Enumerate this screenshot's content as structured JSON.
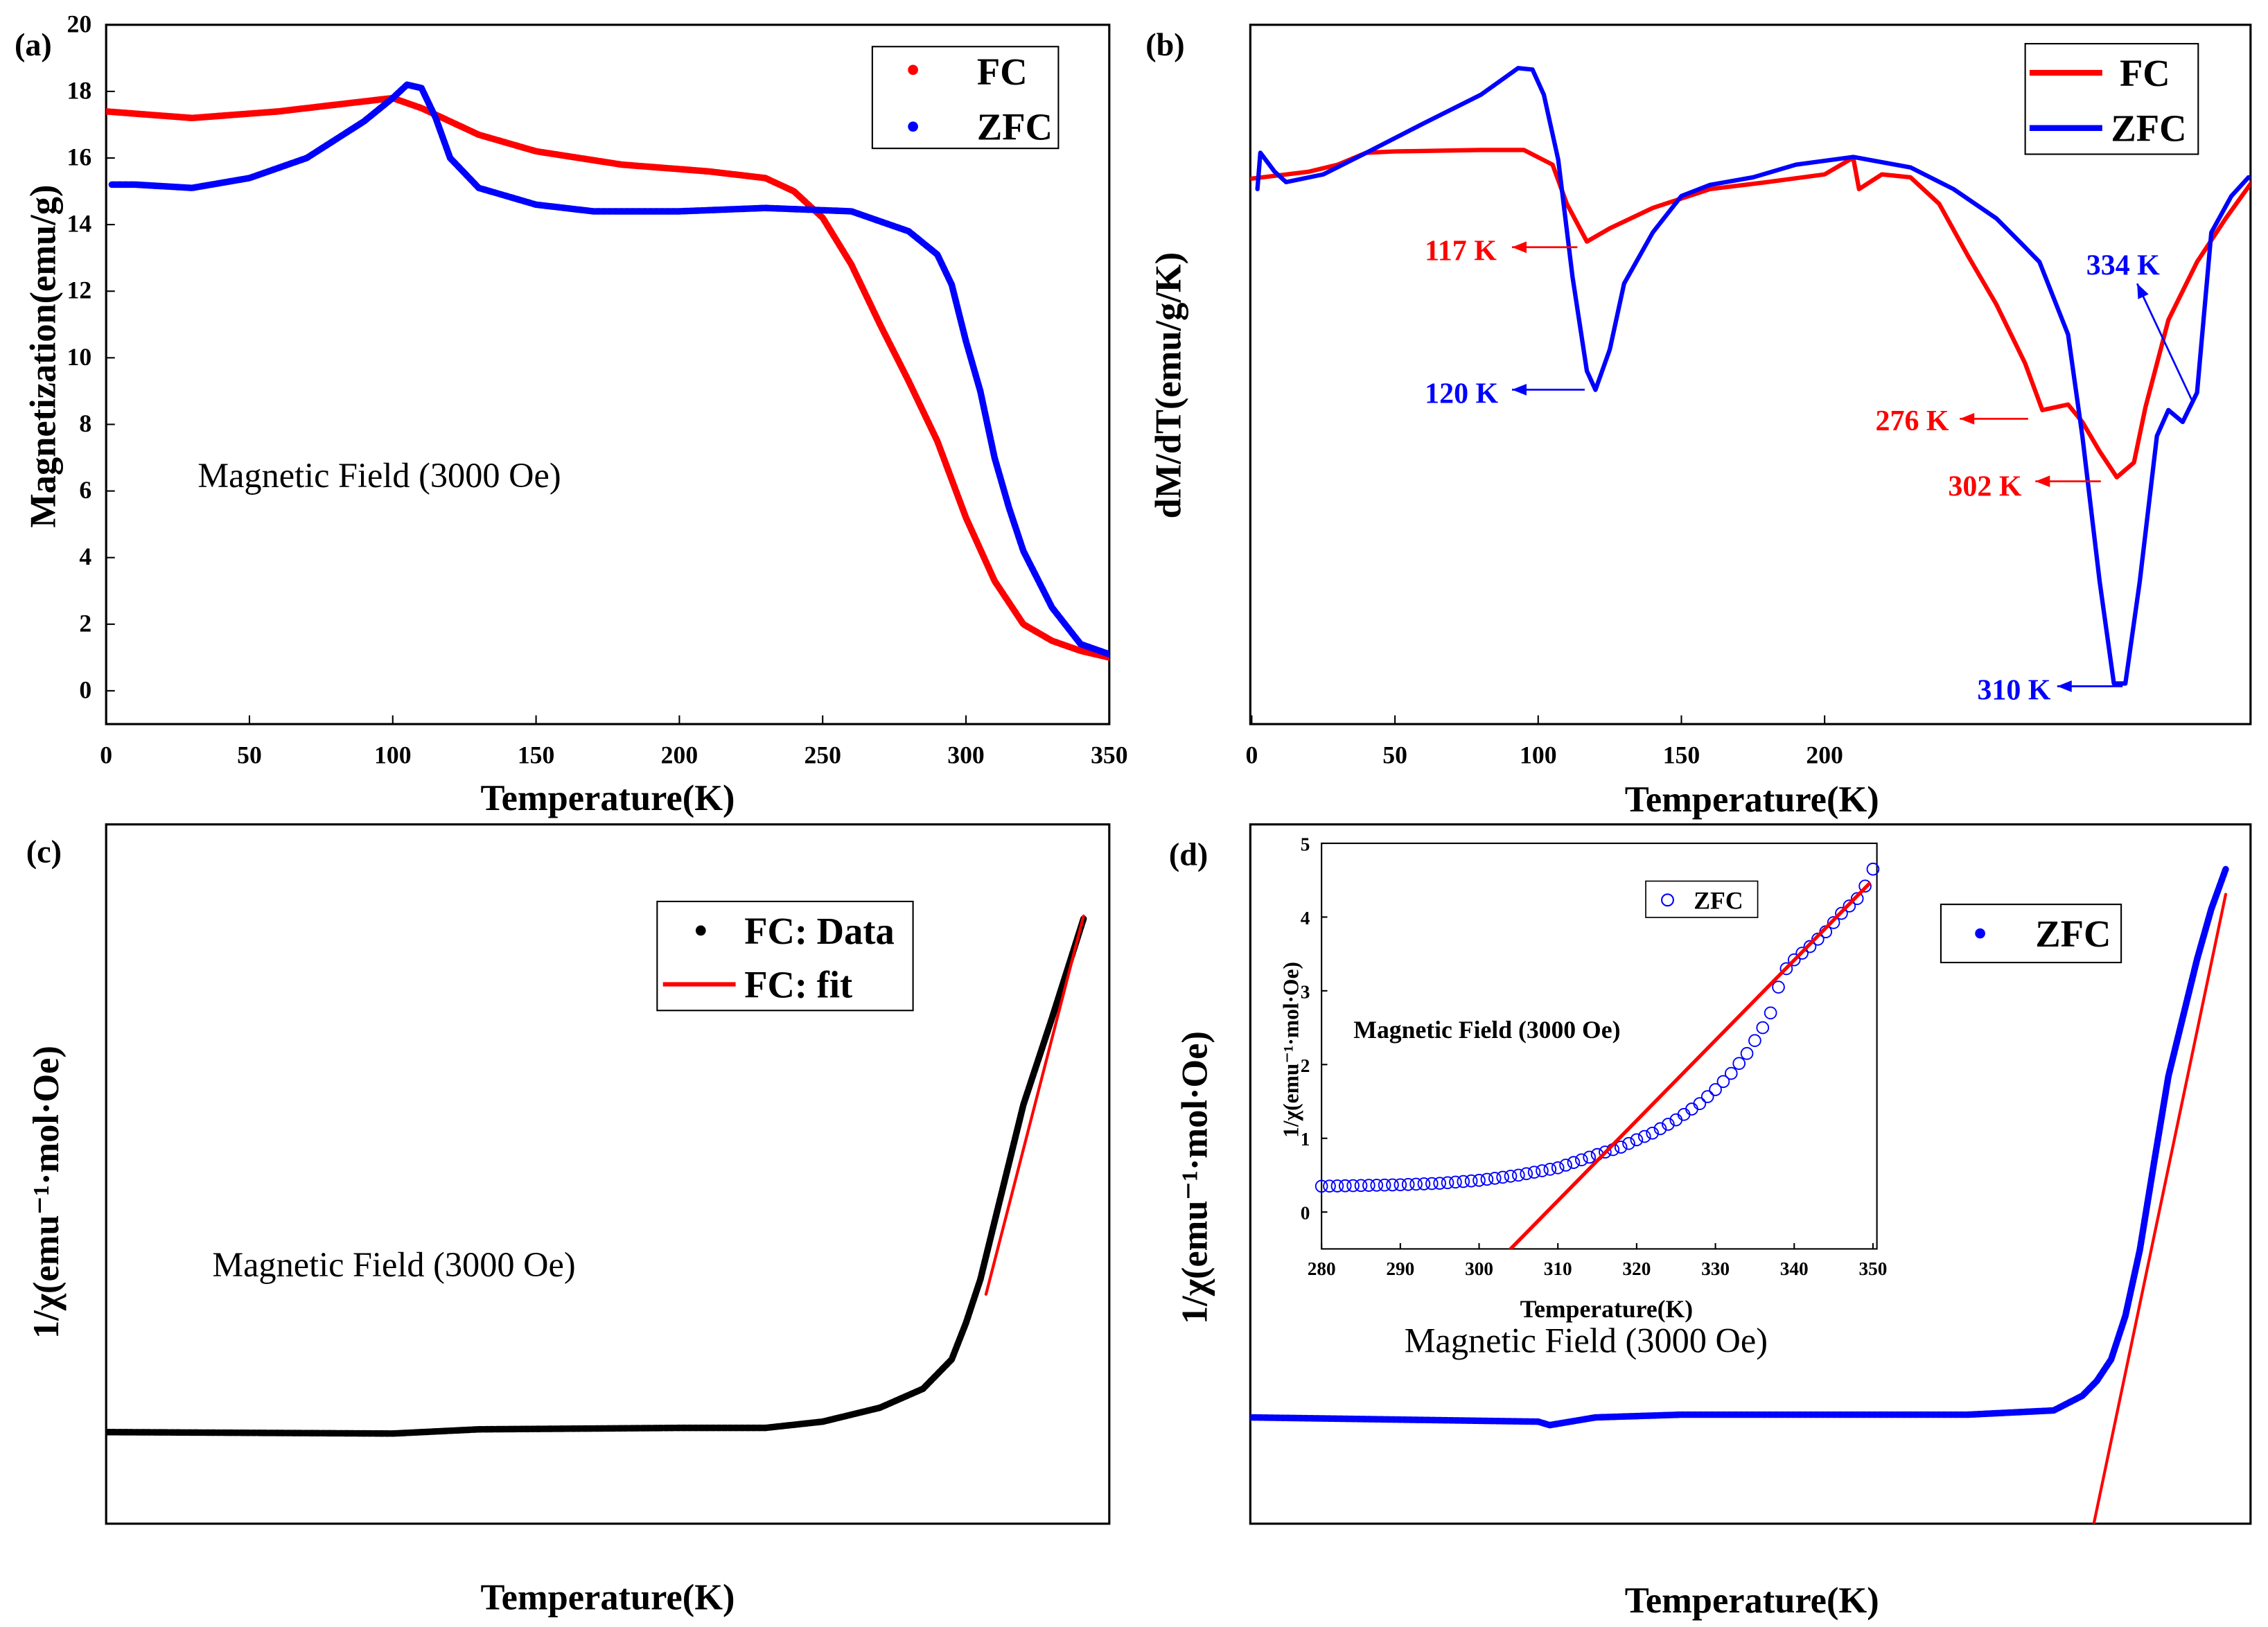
{
  "panel_labels": {
    "a": "(a)",
    "b": "(b)",
    "c": "(c)",
    "d": "(d)"
  },
  "colors": {
    "fc": "#ff0000",
    "zfc": "#0000ff",
    "data": "#000000",
    "fit": "#ff0000"
  },
  "chart_data": [
    {
      "id": "a",
      "type": "scatter",
      "xlabel": "Temperature(K)",
      "ylabel": "Magnetization(emu/g)",
      "xlim": [
        0,
        350
      ],
      "ylim": [
        -1,
        20
      ],
      "xticks": [
        0,
        50,
        100,
        150,
        200,
        250,
        300,
        350
      ],
      "yticks": [
        0,
        2,
        4,
        6,
        8,
        10,
        12,
        14,
        16,
        18,
        20
      ],
      "annotation": "Magnetic Field (3000 Oe)",
      "legend": {
        "position": "top-right",
        "entries": [
          "FC",
          "ZFC"
        ]
      },
      "series": [
        {
          "name": "FC",
          "color": "#ff0000",
          "points": [
            [
              0,
              17.4
            ],
            [
              30,
              17.2
            ],
            [
              60,
              17.4
            ],
            [
              90,
              17.7
            ],
            [
              100,
              17.8
            ],
            [
              110,
              17.5
            ],
            [
              130,
              16.7
            ],
            [
              150,
              16.2
            ],
            [
              180,
              15.8
            ],
            [
              210,
              15.6
            ],
            [
              230,
              15.4
            ],
            [
              240,
              15.0
            ],
            [
              250,
              14.2
            ],
            [
              260,
              12.8
            ],
            [
              270,
              11.0
            ],
            [
              280,
              9.3
            ],
            [
              290,
              7.5
            ],
            [
              300,
              5.2
            ],
            [
              310,
              3.3
            ],
            [
              320,
              2.0
            ],
            [
              330,
              1.5
            ],
            [
              340,
              1.2
            ],
            [
              350,
              1.0
            ]
          ]
        },
        {
          "name": "ZFC",
          "color": "#0000ff",
          "points": [
            [
              2,
              15.2
            ],
            [
              10,
              15.2
            ],
            [
              30,
              15.1
            ],
            [
              50,
              15.4
            ],
            [
              70,
              16.0
            ],
            [
              90,
              17.1
            ],
            [
              100,
              17.8
            ],
            [
              105,
              18.2
            ],
            [
              110,
              18.1
            ],
            [
              115,
              17.2
            ],
            [
              120,
              16.0
            ],
            [
              130,
              15.1
            ],
            [
              150,
              14.6
            ],
            [
              170,
              14.4
            ],
            [
              200,
              14.4
            ],
            [
              230,
              14.5
            ],
            [
              260,
              14.4
            ],
            [
              280,
              13.8
            ],
            [
              290,
              13.1
            ],
            [
              295,
              12.2
            ],
            [
              300,
              10.5
            ],
            [
              305,
              9.0
            ],
            [
              310,
              7.0
            ],
            [
              315,
              5.5
            ],
            [
              320,
              4.2
            ],
            [
              330,
              2.5
            ],
            [
              340,
              1.4
            ],
            [
              350,
              1.1
            ]
          ]
        }
      ]
    },
    {
      "id": "b",
      "type": "line",
      "xlabel": "Temperature(K)",
      "ylabel": "dM/dT(emu/g/K)",
      "xlim": [
        -0.5,
        348.7
      ],
      "ylim": [
        0,
        1
      ],
      "y_units": "arbitrary (no tick labels)",
      "xticks": [
        0,
        50,
        100,
        150,
        200
      ],
      "yticks": [],
      "legend": {
        "position": "top-right",
        "entries": [
          "FC",
          "ZFC"
        ]
      },
      "annotations": [
        {
          "text": "117 K",
          "series": "FC"
        },
        {
          "text": "120 K",
          "series": "ZFC"
        },
        {
          "text": "276 K",
          "series": "FC"
        },
        {
          "text": "302 K",
          "series": "FC"
        },
        {
          "text": "310 K",
          "series": "ZFC"
        },
        {
          "text": "334 K",
          "series": "ZFC"
        }
      ],
      "series": [
        {
          "name": "FC",
          "color": "#ff0000",
          "points": [
            [
              0,
              0.78
            ],
            [
              20,
              0.79
            ],
            [
              30,
              0.8
            ],
            [
              40,
              0.817
            ],
            [
              50,
              0.819
            ],
            [
              80,
              0.821
            ],
            [
              95,
              0.821
            ],
            [
              105,
              0.8
            ],
            [
              110,
              0.744
            ],
            [
              117,
              0.69
            ],
            [
              125,
              0.709
            ],
            [
              140,
              0.738
            ],
            [
              160,
              0.765
            ],
            [
              180,
              0.775
            ],
            [
              200,
              0.786
            ],
            [
              210,
              0.81
            ],
            [
              212,
              0.765
            ],
            [
              220,
              0.786
            ],
            [
              230,
              0.782
            ],
            [
              240,
              0.744
            ],
            [
              250,
              0.67
            ],
            [
              260,
              0.6
            ],
            [
              270,
              0.516
            ],
            [
              276,
              0.449
            ],
            [
              285,
              0.457
            ],
            [
              290,
              0.432
            ],
            [
              296,
              0.39
            ],
            [
              302,
              0.353
            ],
            [
              308,
              0.374
            ],
            [
              312,
              0.453
            ],
            [
              320,
              0.578
            ],
            [
              330,
              0.661
            ],
            [
              340,
              0.723
            ],
            [
              350,
              0.78
            ]
          ]
        },
        {
          "name": "ZFC",
          "color": "#0000ff",
          "points": [
            [
              2,
              0.765
            ],
            [
              3,
              0.817
            ],
            [
              8,
              0.79
            ],
            [
              12,
              0.775
            ],
            [
              25,
              0.786
            ],
            [
              40,
              0.817
            ],
            [
              60,
              0.859
            ],
            [
              80,
              0.9
            ],
            [
              93,
              0.938
            ],
            [
              98,
              0.936
            ],
            [
              102,
              0.9
            ],
            [
              107,
              0.807
            ],
            [
              112,
              0.64
            ],
            [
              117,
              0.505
            ],
            [
              120,
              0.478
            ],
            [
              125,
              0.536
            ],
            [
              130,
              0.63
            ],
            [
              140,
              0.703
            ],
            [
              150,
              0.755
            ],
            [
              160,
              0.771
            ],
            [
              175,
              0.782
            ],
            [
              190,
              0.8
            ],
            [
              210,
              0.811
            ],
            [
              230,
              0.796
            ],
            [
              245,
              0.765
            ],
            [
              260,
              0.723
            ],
            [
              270,
              0.682
            ],
            [
              275,
              0.661
            ],
            [
              285,
              0.557
            ],
            [
              290,
              0.412
            ],
            [
              296,
              0.204
            ],
            [
              301,
              0.058
            ],
            [
              305,
              0.058
            ],
            [
              310,
              0.204
            ],
            [
              316,
              0.412
            ],
            [
              320,
              0.449
            ],
            [
              325,
              0.432
            ],
            [
              330,
              0.474
            ],
            [
              335,
              0.703
            ],
            [
              342,
              0.755
            ],
            [
              348,
              0.782
            ]
          ]
        }
      ]
    },
    {
      "id": "c",
      "type": "scatter",
      "xlabel": "Temperature(K)",
      "ylabel": "1/χ(emu⁻¹·mol·Oe)",
      "xlim": [
        0,
        350
      ],
      "ylim": [
        0,
        1
      ],
      "y_units": "arbitrary (no tick labels)",
      "xticks": [],
      "yticks": [],
      "annotation": "Magnetic Field (3000 Oe)",
      "legend": {
        "position": "top-right",
        "entries": [
          "FC: Data",
          "FC: fit"
        ]
      },
      "series": [
        {
          "name": "FC: Data",
          "color": "#000000",
          "points": [
            [
              0,
              0.131
            ],
            [
              100,
              0.129
            ],
            [
              130,
              0.135
            ],
            [
              200,
              0.137
            ],
            [
              230,
              0.137
            ],
            [
              250,
              0.146
            ],
            [
              270,
              0.166
            ],
            [
              285,
              0.193
            ],
            [
              295,
              0.235
            ],
            [
              300,
              0.287
            ],
            [
              305,
              0.349
            ],
            [
              310,
              0.432
            ],
            [
              320,
              0.599
            ],
            [
              330,
              0.723
            ],
            [
              341,
              0.865
            ]
          ]
        },
        {
          "name": "FC: fit",
          "color": "#ff0000",
          "points": [
            [
              307,
              0.328
            ],
            [
              341,
              0.869
            ]
          ]
        }
      ]
    },
    {
      "id": "d",
      "type": "scatter",
      "xlabel": "Temperature(K)",
      "ylabel": "1/χ(emu⁻¹·mol·Oe)",
      "xlim": [
        -0.5,
        348.7
      ],
      "ylim": [
        0,
        1
      ],
      "y_units": "arbitrary (no tick labels)",
      "xticks": [],
      "yticks": [],
      "annotation": "Magnetic Field (3000 Oe)",
      "legend": {
        "position": "top-right",
        "entries": [
          "ZFC"
        ]
      },
      "series": [
        {
          "name": "ZFC",
          "color": "#0000ff",
          "points": [
            [
              0,
              0.152
            ],
            [
              100,
              0.146
            ],
            [
              104,
              0.141
            ],
            [
              120,
              0.152
            ],
            [
              150,
              0.156
            ],
            [
              250,
              0.156
            ],
            [
              280,
              0.162
            ],
            [
              290,
              0.183
            ],
            [
              295,
              0.204
            ],
            [
              300,
              0.235
            ],
            [
              305,
              0.297
            ],
            [
              310,
              0.391
            ],
            [
              315,
              0.516
            ],
            [
              320,
              0.64
            ],
            [
              325,
              0.723
            ],
            [
              330,
              0.807
            ],
            [
              335,
              0.879
            ],
            [
              340,
              0.936
            ]
          ]
        },
        {
          "name": "fit",
          "color": "#ff0000",
          "points": [
            [
              294,
              0
            ],
            [
              340,
              0.9
            ]
          ]
        }
      ]
    },
    {
      "id": "d-inset",
      "type": "scatter",
      "xlabel": "Temperature(K)",
      "ylabel": "1/χ(emu⁻¹·mol·Oe)",
      "xlim": [
        280,
        350.5
      ],
      "ylim": [
        -0.5,
        5
      ],
      "xticks": [
        280,
        290,
        300,
        310,
        320,
        330,
        340,
        350
      ],
      "yticks": [
        0,
        1,
        2,
        3,
        4,
        5
      ],
      "annotation": "Magnetic Field (3000 Oe)",
      "legend": {
        "position": "top-right",
        "entries": [
          "ZFC"
        ]
      },
      "series": [
        {
          "name": "ZFC",
          "color": "#0000ff",
          "marker": "open-circle",
          "points": [
            [
              280,
              0.35
            ],
            [
              285,
              0.36
            ],
            [
              290,
              0.37
            ],
            [
              295,
              0.39
            ],
            [
              300,
              0.43
            ],
            [
              305,
              0.5
            ],
            [
              310,
              0.6
            ],
            [
              315,
              0.78
            ],
            [
              318,
              0.88
            ],
            [
              320,
              0.98
            ],
            [
              322,
              1.07
            ],
            [
              325,
              1.25
            ],
            [
              328,
              1.47
            ],
            [
              330,
              1.66
            ],
            [
              332,
              1.88
            ],
            [
              334,
              2.15
            ],
            [
              336,
              2.5
            ],
            [
              337,
              2.7
            ],
            [
              338,
              3.05
            ],
            [
              339,
              3.3
            ],
            [
              340,
              3.42
            ],
            [
              342,
              3.6
            ],
            [
              344,
              3.8
            ],
            [
              346,
              4.05
            ],
            [
              348,
              4.25
            ],
            [
              349,
              4.42
            ],
            [
              350,
              4.65
            ]
          ]
        },
        {
          "name": "fit",
          "color": "#ff0000",
          "points": [
            [
              304,
              -0.5
            ],
            [
              349.5,
              4.45
            ]
          ]
        }
      ]
    }
  ]
}
